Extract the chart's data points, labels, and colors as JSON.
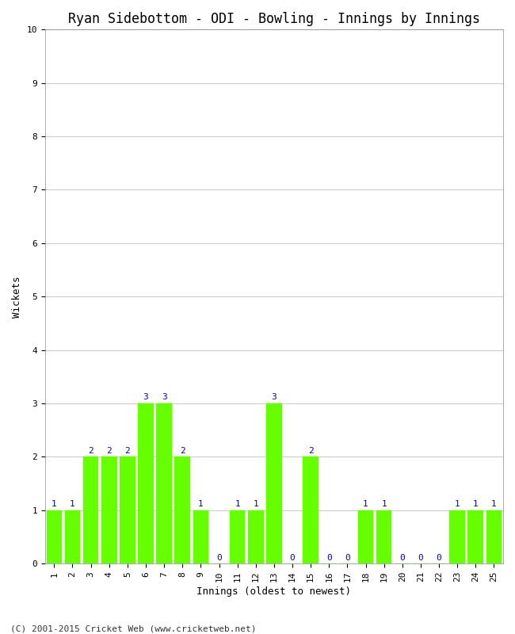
{
  "title": "Ryan Sidebottom - ODI - Bowling - Innings by Innings",
  "xlabel": "Innings (oldest to newest)",
  "ylabel": "Wickets",
  "categories": [
    1,
    2,
    3,
    4,
    5,
    6,
    7,
    8,
    9,
    10,
    11,
    12,
    13,
    14,
    15,
    16,
    17,
    18,
    19,
    20,
    21,
    22,
    23,
    24,
    25
  ],
  "values": [
    1,
    1,
    2,
    2,
    2,
    3,
    3,
    2,
    1,
    0,
    1,
    1,
    3,
    0,
    2,
    0,
    0,
    1,
    1,
    0,
    0,
    0,
    1,
    1,
    1
  ],
  "bar_color": "#66ff00",
  "bar_edge_color": "#66ff00",
  "label_color": "#0000cc",
  "ylim": [
    0,
    10
  ],
  "yticks": [
    0,
    1,
    2,
    3,
    4,
    5,
    6,
    7,
    8,
    9,
    10
  ],
  "background_color": "#ffffff",
  "grid_color": "#cccccc",
  "title_fontsize": 12,
  "axis_label_fontsize": 9,
  "tick_fontsize": 8,
  "bar_label_fontsize": 8,
  "footer": "(C) 2001-2015 Cricket Web (www.cricketweb.net)"
}
